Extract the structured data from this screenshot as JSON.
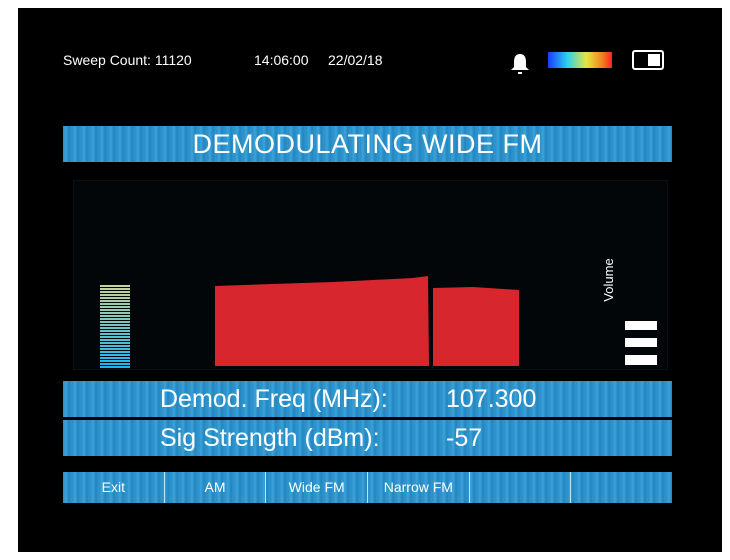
{
  "status_bar": {
    "sweep_count": "Sweep Count: 11120",
    "time": "14:06:00",
    "date": "22/02/18"
  },
  "banner": "DEMODULATING WIDE FM",
  "volume_label": "Volume",
  "readouts": [
    {
      "label": "Demod. Freq (MHz):",
      "value": "107.300"
    },
    {
      "label": "Sig Strength (dBm):",
      "value": "-57"
    }
  ],
  "softkeys": [
    "Exit",
    "AM",
    "Wide FM",
    "Narrow FM"
  ]
}
